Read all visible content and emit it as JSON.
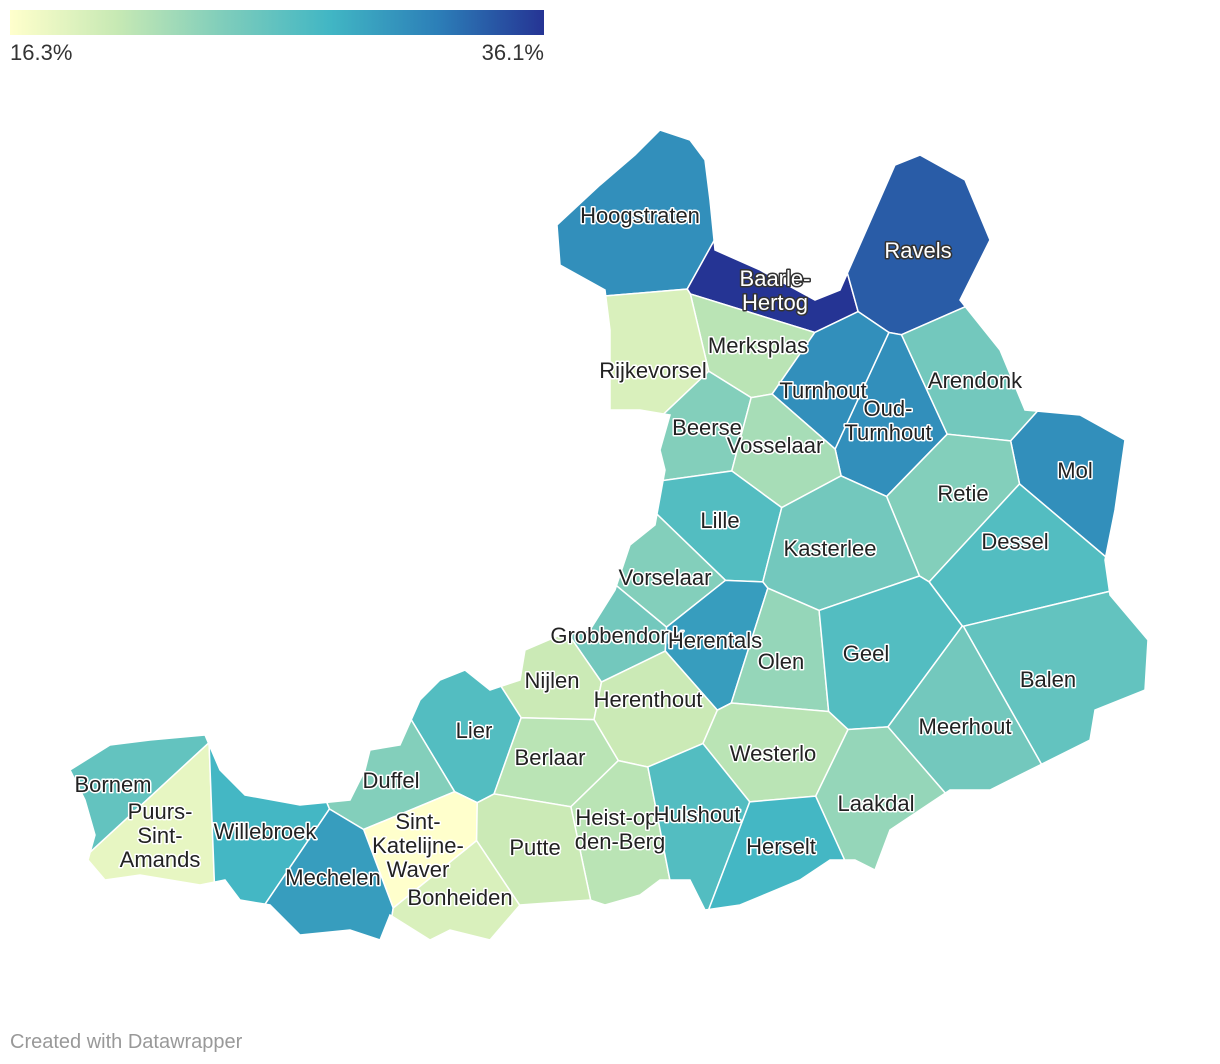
{
  "legend": {
    "color_scale": [
      "#ffffcc",
      "#c7e9b4",
      "#7fcdbb",
      "#41b6c4",
      "#2c7fb8",
      "#253494"
    ],
    "min": {
      "value": 16.3,
      "label": "16.3%"
    },
    "max": {
      "value": 36.1,
      "label": "36.1%"
    }
  },
  "regions": [
    {
      "label": [
        "Hoogstraten"
      ],
      "value": 31
    },
    {
      "label": [
        "Baarle-",
        "Hertog"
      ],
      "value": 36.1
    },
    {
      "label": [
        "Ravels"
      ],
      "value": 34
    },
    {
      "label": [
        "Merksplas"
      ],
      "value": 21
    },
    {
      "label": [
        "Rijkevorsel"
      ],
      "value": 19
    },
    {
      "label": [
        "Turnhout"
      ],
      "value": 31
    },
    {
      "label": [
        "Oud-",
        "Turnhout"
      ],
      "value": 31
    },
    {
      "label": [
        "Arendonk"
      ],
      "value": 25
    },
    {
      "label": [
        "Beerse"
      ],
      "value": 24
    },
    {
      "label": [
        "Vosselaar"
      ],
      "value": 22
    },
    {
      "label": [
        "Mol"
      ],
      "value": 31
    },
    {
      "label": [
        "Retie"
      ],
      "value": 24
    },
    {
      "label": [
        "Lille"
      ],
      "value": 27
    },
    {
      "label": [
        "Kasterlee"
      ],
      "value": 25
    },
    {
      "label": [
        "Dessel"
      ],
      "value": 27
    },
    {
      "label": [
        "Vorselaar"
      ],
      "value": 24
    },
    {
      "label": [
        "Grobbendonk"
      ],
      "value": 25
    },
    {
      "label": [
        "Herentals"
      ],
      "value": 30
    },
    {
      "label": [
        "Olen"
      ],
      "value": 23
    },
    {
      "label": [
        "Geel"
      ],
      "value": 27
    },
    {
      "label": [
        "Balen"
      ],
      "value": 26
    },
    {
      "label": [
        "Nijlen"
      ],
      "value": 20
    },
    {
      "label": [
        "Herenthout"
      ],
      "value": 20
    },
    {
      "label": [
        "Lier"
      ],
      "value": 27
    },
    {
      "label": [
        "Meerhout"
      ],
      "value": 25
    },
    {
      "label": [
        "Westerlo"
      ],
      "value": 21
    },
    {
      "label": [
        "Berlaar"
      ],
      "value": 21
    },
    {
      "label": [
        "Duffel"
      ],
      "value": 24
    },
    {
      "label": [
        "Bornem"
      ],
      "value": 26
    },
    {
      "label": [
        "Laakdal"
      ],
      "value": 23
    },
    {
      "label": [
        "Heist-op-",
        "den-Berg"
      ],
      "value": 21
    },
    {
      "label": [
        "Hulshout"
      ],
      "value": 27
    },
    {
      "label": [
        "Sint-",
        "Katelijne-",
        "Waver"
      ],
      "value": 16.3
    },
    {
      "label": [
        "Puurs-",
        "Sint-",
        "Amands"
      ],
      "value": 18
    },
    {
      "label": [
        "Willebroek"
      ],
      "value": 28
    },
    {
      "label": [
        "Putte"
      ],
      "value": 20
    },
    {
      "label": [
        "Herselt"
      ],
      "value": 28
    },
    {
      "label": [
        "Mechelen"
      ],
      "value": 30
    },
    {
      "label": [
        "Bonheiden"
      ],
      "value": 19
    }
  ],
  "footer": "Created with Datawrapper"
}
